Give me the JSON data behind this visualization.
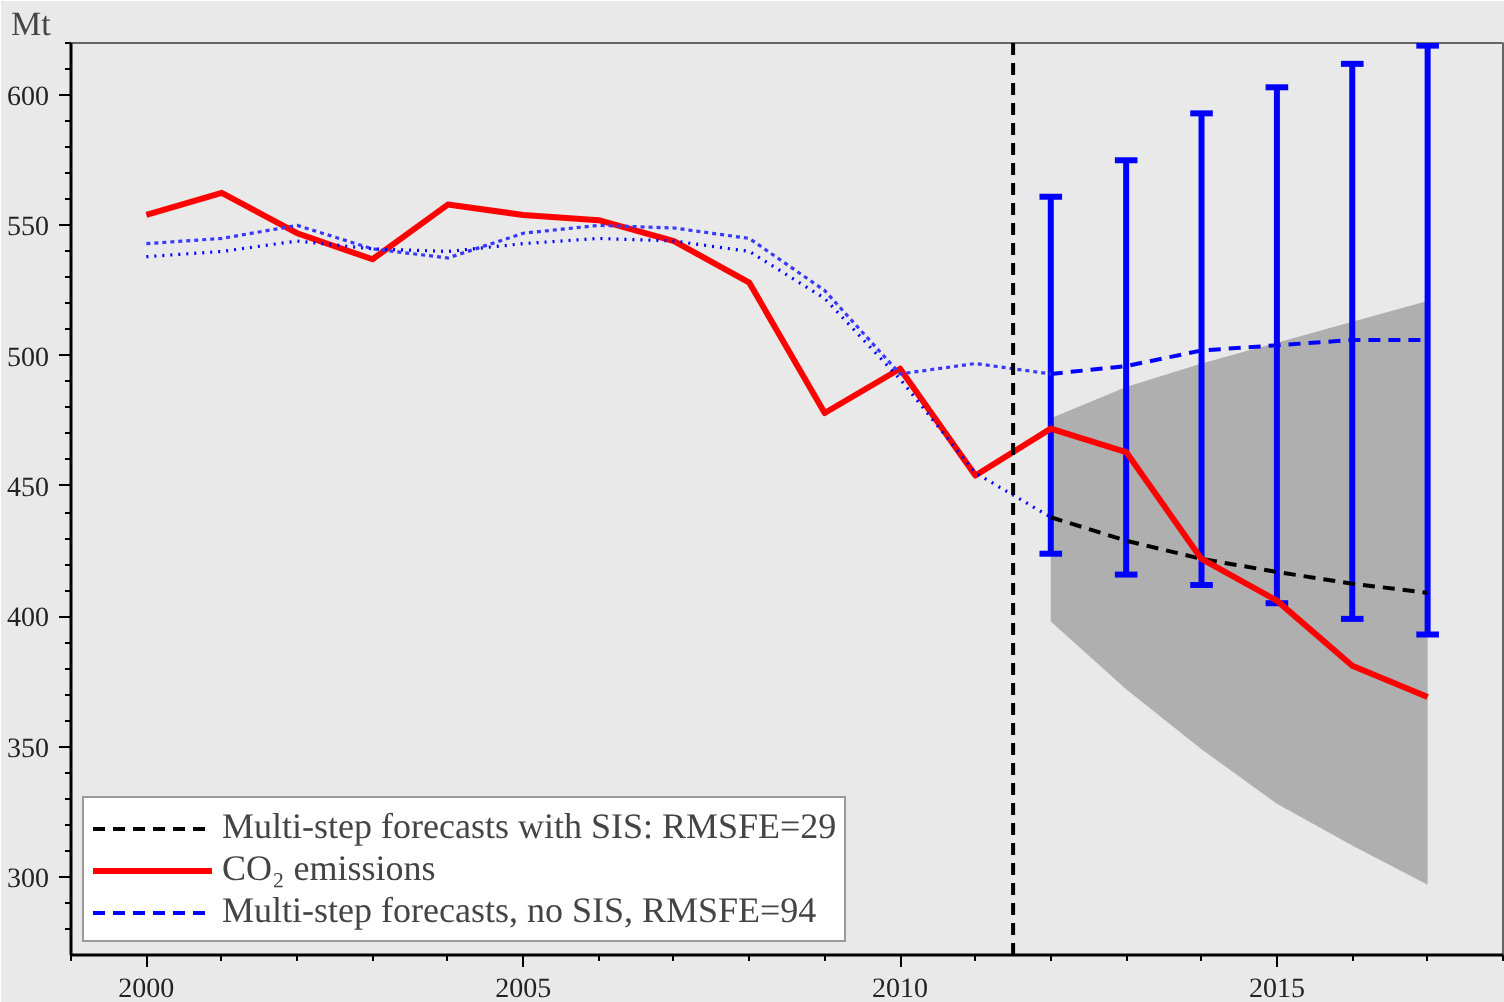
{
  "chart_data": {
    "type": "line",
    "ylabel": "Mt",
    "xlim": [
      1999,
      2018
    ],
    "ylim": [
      270,
      620
    ],
    "xticks": [
      2000,
      2005,
      2010,
      2015
    ],
    "yticks": [
      300,
      350,
      400,
      450,
      500,
      550,
      600
    ],
    "legend": "bottom left",
    "ref_lines": [
      {
        "axis": "x",
        "value": 2011.5,
        "label": null,
        "color": "#000000",
        "line_style": "dashed"
      }
    ],
    "series": [
      {
        "name": "Multi-step forecasts with SIS: RMSFE=29",
        "color": "#000000",
        "line_style": "dashed",
        "x": [
          2012,
          2013,
          2014,
          2015,
          2016,
          2017
        ],
        "values": [
          438,
          429,
          422,
          417,
          412.5,
          409
        ],
        "lower": [
          398,
          372,
          349,
          328,
          312,
          297
        ],
        "upper": [
          476,
          488,
          497,
          505,
          513,
          521
        ]
      },
      {
        "name": "CO₂ emissions",
        "color": "#ff0000",
        "line_style": "solid",
        "x": [
          2000,
          2001,
          2002,
          2003,
          2004,
          2005,
          2006,
          2007,
          2008,
          2009,
          2010,
          2011,
          2012,
          2013,
          2014,
          2015,
          2016,
          2017
        ],
        "values": [
          554,
          562.5,
          547,
          537,
          558,
          554,
          552,
          544,
          528,
          478,
          495,
          454,
          472,
          463,
          422,
          406,
          381,
          369
        ]
      },
      {
        "name": "Multi-step forecasts, no SIS, RMSFE=94",
        "color": "#0000ff",
        "line_style": "dashed",
        "x": [
          2012,
          2013,
          2014,
          2015,
          2016,
          2017
        ],
        "values": [
          493,
          496,
          502,
          504,
          506,
          506
        ],
        "errors": [
          [
            424,
            561
          ],
          [
            416,
            575
          ],
          [
            412,
            593
          ],
          [
            405,
            603
          ],
          [
            399,
            612
          ],
          [
            393,
            619
          ]
        ]
      },
      {
        "color": "#3838ff",
        "line_style": "dotted",
        "x": [
          2000,
          2001,
          2002,
          2003,
          2004,
          2005,
          2006,
          2007,
          2008,
          2009,
          2010,
          2011,
          2012
        ],
        "values": [
          543,
          545,
          550,
          541,
          537.5,
          547,
          550,
          549,
          545,
          525,
          493,
          497,
          493
        ]
      },
      {
        "color": "#0000ff",
        "line_style": "dotted",
        "x": [
          2000,
          2001,
          2002,
          2003,
          2004,
          2005,
          2006,
          2007,
          2008,
          2009,
          2010,
          2011,
          2012
        ],
        "values": [
          538,
          540,
          544,
          541,
          540,
          543,
          545,
          544,
          540,
          522,
          491,
          455,
          438
        ]
      }
    ]
  }
}
